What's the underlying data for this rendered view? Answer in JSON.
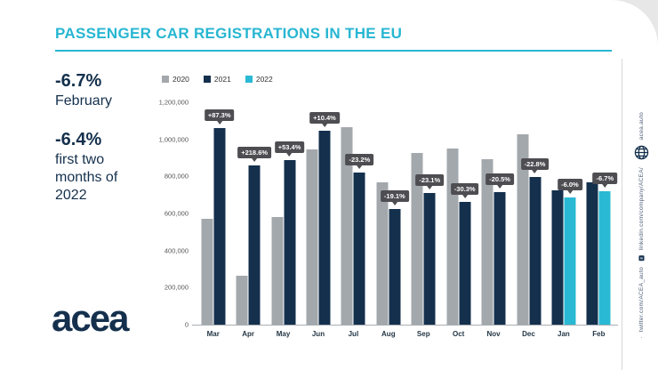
{
  "page": {
    "title": "PASSENGER CAR REGISTRATIONS IN THE EU"
  },
  "highlights": {
    "stat1_value": "-6.7%",
    "stat1_label": "February",
    "stat2_value": "-6.4%",
    "stat2_label": "first two months of 2022"
  },
  "logo": {
    "text": "acea"
  },
  "sidebar": {
    "website": "acea.auto",
    "linkedin": "linkedin.com/company/ACEA/",
    "twitter": "twitter.com/ACEA_auto",
    "linkedin_glyph": "in"
  },
  "colors": {
    "accent_cyan": "#27b6d2",
    "bar_2020": "#a3a8ad",
    "bar_2021": "#14304d",
    "bar_2022": "#29b9d4",
    "tooltip_bg": "#4d4d52",
    "navy_text": "#14304d"
  },
  "chart_data": {
    "type": "bar",
    "title": "PASSENGER CAR REGISTRATIONS IN THE EU",
    "categories": [
      "Mar",
      "Apr",
      "May",
      "Jun",
      "Jul",
      "Aug",
      "Sep",
      "Oct",
      "Nov",
      "Dec",
      "Jan",
      "Feb"
    ],
    "series": [
      {
        "name": "2020",
        "values": [
          570000,
          265000,
          580000,
          945000,
          1065000,
          770000,
          925000,
          950000,
          895000,
          1025000,
          null,
          null
        ]
      },
      {
        "name": "2021",
        "values": [
          1060000,
          860000,
          890000,
          1045000,
          820000,
          625000,
          710000,
          660000,
          713000,
          795000,
          725000,
          770000
        ]
      },
      {
        "name": "2022",
        "values": [
          null,
          null,
          null,
          null,
          null,
          null,
          null,
          null,
          null,
          null,
          685000,
          718000
        ]
      }
    ],
    "point_labels": [
      "+87.3%",
      "+218.6%",
      "+53.4%",
      "+10.4%",
      "-23.2%",
      "-19.1%",
      "-23.1%",
      "-30.3%",
      "-20.5%",
      "-22.8%",
      "-6.0%",
      "-6.7%"
    ],
    "ylim": [
      0,
      1200000
    ],
    "y_ticks": [
      "1,200,000",
      "1,000,000",
      "800,000",
      "600,000",
      "400,000",
      "200,000",
      "0"
    ],
    "xlabel": "",
    "ylabel": "",
    "legend": [
      "2020",
      "2021",
      "2022"
    ],
    "legend_position": "top-left",
    "grid": false
  }
}
